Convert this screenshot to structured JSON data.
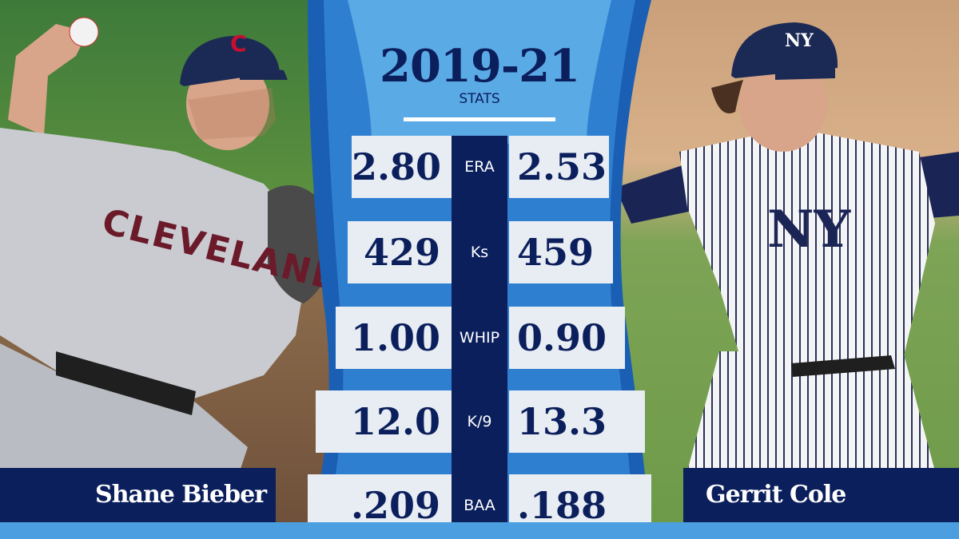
{
  "header": {
    "years": "2019-21",
    "subtitle": "STATS"
  },
  "players": {
    "left": {
      "name": "Shane Bieber",
      "team": "CLEVELAND",
      "cap_logo": "C"
    },
    "right": {
      "name": "Gerrit Cole",
      "team_logo": "NY"
    }
  },
  "stats": [
    {
      "label": "ERA",
      "left": "2.80",
      "right": "2.53"
    },
    {
      "label": "Ks",
      "left": "429",
      "right": "459"
    },
    {
      "label": "WHIP",
      "left": "1.00",
      "right": "0.90"
    },
    {
      "label": "K/9",
      "left": "12.0",
      "right": "13.3"
    },
    {
      "label": "BAA",
      "left": ".209",
      "right": ".188"
    }
  ],
  "colors": {
    "navy": "#0b1f5c",
    "blue": "#1a5fb4",
    "light_blue": "#4b9fe0",
    "cell": "#e8ecf3"
  }
}
